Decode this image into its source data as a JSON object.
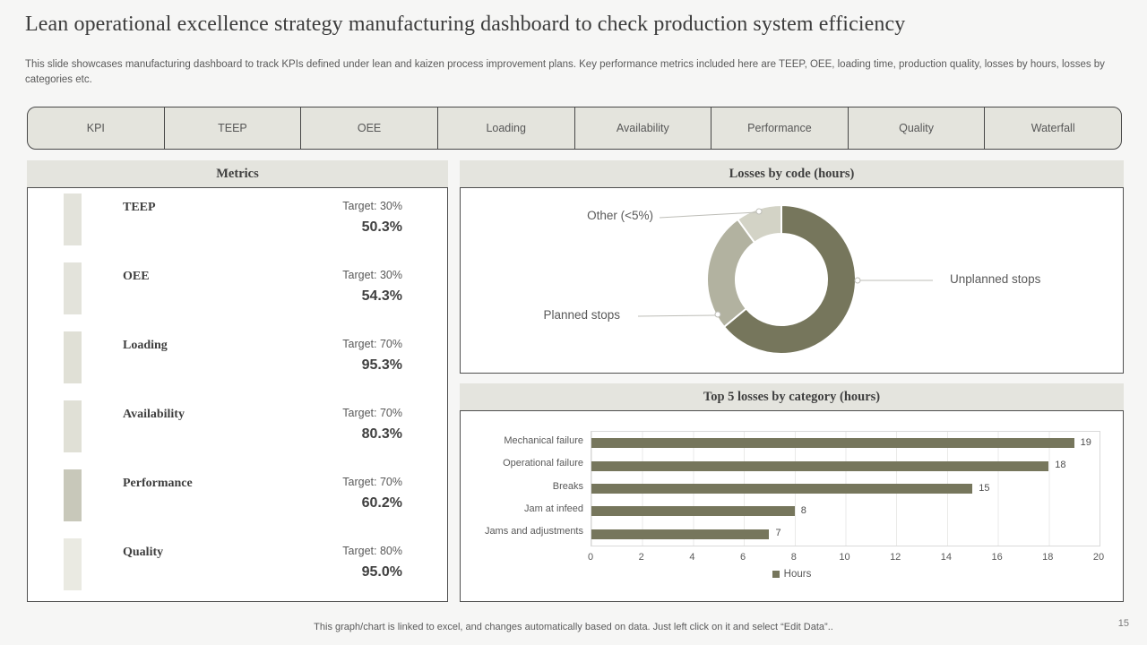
{
  "header": {
    "title": "Lean operational excellence strategy manufacturing dashboard to check production system efficiency",
    "subtitle": "This slide showcases manufacturing dashboard to track KPIs defined under lean and kaizen process improvement plans. Key performance metrics included here are TEEP, OEE, loading time, production quality, losses by hours, losses by categories etc."
  },
  "tabs": [
    "KPI",
    "TEEP",
    "OEE",
    "Loading",
    "Availability",
    "Performance",
    "Quality",
    "Waterfall"
  ],
  "metrics": {
    "title": "Metrics",
    "items": [
      {
        "name": "TEEP",
        "target": "Target: 30%",
        "value": "50.3%",
        "accent": "#e3e3db"
      },
      {
        "name": "OEE",
        "target": "Target: 30%",
        "value": "54.3%",
        "accent": "#e3e3db"
      },
      {
        "name": "Loading",
        "target": "Target: 70%",
        "value": "95.3%",
        "accent": "#e0e0d6"
      },
      {
        "name": "Availability",
        "target": "Target: 70%",
        "value": "80.3%",
        "accent": "#e0e0d6"
      },
      {
        "name": "Performance",
        "target": "Target: 70%",
        "value": "60.2%",
        "accent": "#c8c8ba"
      },
      {
        "name": "Quality",
        "target": "Target: 80%",
        "value": "95.0%",
        "accent": "#eaeae2"
      }
    ]
  },
  "chart_data": [
    {
      "type": "pie",
      "subtype": "donut",
      "title": "Losses by code (hours)",
      "labels": [
        "Unplanned stops",
        "Planned stops",
        "Other (<5%)"
      ],
      "values": [
        64,
        26,
        10
      ],
      "value_note": "share of ring, percent, estimated from arc angles",
      "colors": [
        "#76765c",
        "#b2b2a0",
        "#d3d3c6"
      ],
      "legend_position": "callout-labels",
      "start_angle_deg": 0,
      "direction": "clockwise"
    },
    {
      "type": "bar",
      "orientation": "horizontal",
      "title": "Top 5 losses by category (hours)",
      "categories": [
        "Mechanical failure",
        "Operational failure",
        "Breaks",
        "Jam at infeed",
        "Jams and adjustments"
      ],
      "values": [
        19,
        18,
        15,
        8,
        7
      ],
      "xlabel": "",
      "ylabel": "",
      "xlim": [
        0,
        20
      ],
      "xticks": [
        0,
        2,
        4,
        6,
        8,
        10,
        12,
        14,
        16,
        18,
        20
      ],
      "grid": true,
      "legend": [
        "Hours"
      ],
      "legend_position": "bottom-center",
      "bar_color": "#76765c"
    }
  ],
  "footer": {
    "note": "This graph/chart is linked to excel, and changes automatically based on data. Just left click on it and select “Edit Data”..",
    "page_number": "15"
  },
  "colors": {
    "page_background": "#f6f6f5",
    "panel_background": "#ffffff",
    "header_strip": "#e4e4de",
    "tab_fill": "#e4e4dd",
    "border_dark": "#4f4f4f",
    "text_dark": "#3f3f3f",
    "text_gray": "#595959",
    "olive_dark": "#76765c",
    "olive_mid": "#b2b2a0",
    "olive_pale": "#d3d3c6",
    "callout_line": "#bdbdb7",
    "gridline": "#eaeae8"
  }
}
